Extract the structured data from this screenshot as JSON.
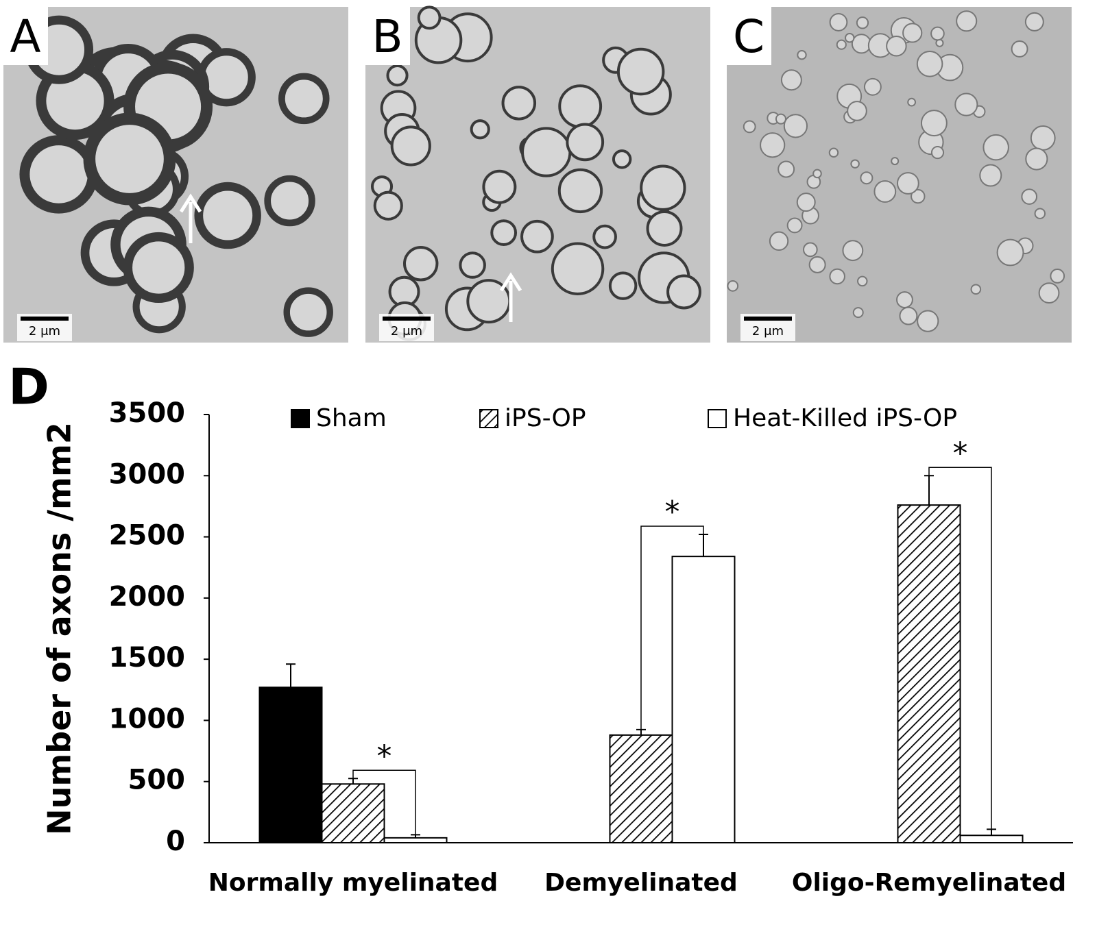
{
  "panels": [
    {
      "label": "A",
      "scale_bar": "2 μm"
    },
    {
      "label": "B",
      "scale_bar": "2 μm"
    },
    {
      "label": "C",
      "scale_bar": "2 μm"
    }
  ],
  "chart_data": {
    "type": "bar",
    "panel_label": "D",
    "ylabel": "Number of axons /mm2",
    "categories": [
      "Normally myelinated",
      "Demyelinated",
      "Oligo-Remyelinated"
    ],
    "series": [
      {
        "name": "Sham",
        "color": "#000000",
        "values": [
          1270,
          null,
          null
        ],
        "errors": [
          190,
          null,
          null
        ]
      },
      {
        "name": "iPS-OP",
        "color": "#000000",
        "hatch": true,
        "values": [
          480,
          880,
          2760
        ],
        "errors": [
          45,
          45,
          240
        ]
      },
      {
        "name": "Heat-Killed iPS-OP",
        "color": "#ffffff",
        "values": [
          40,
          2340,
          60
        ],
        "errors": [
          25,
          180,
          50
        ]
      }
    ],
    "significance": [
      "*",
      "*",
      "*"
    ],
    "ylim": [
      0,
      3500
    ],
    "yticks": [
      0,
      500,
      1000,
      1500,
      2000,
      2500,
      3000,
      3500
    ],
    "grid": false
  }
}
